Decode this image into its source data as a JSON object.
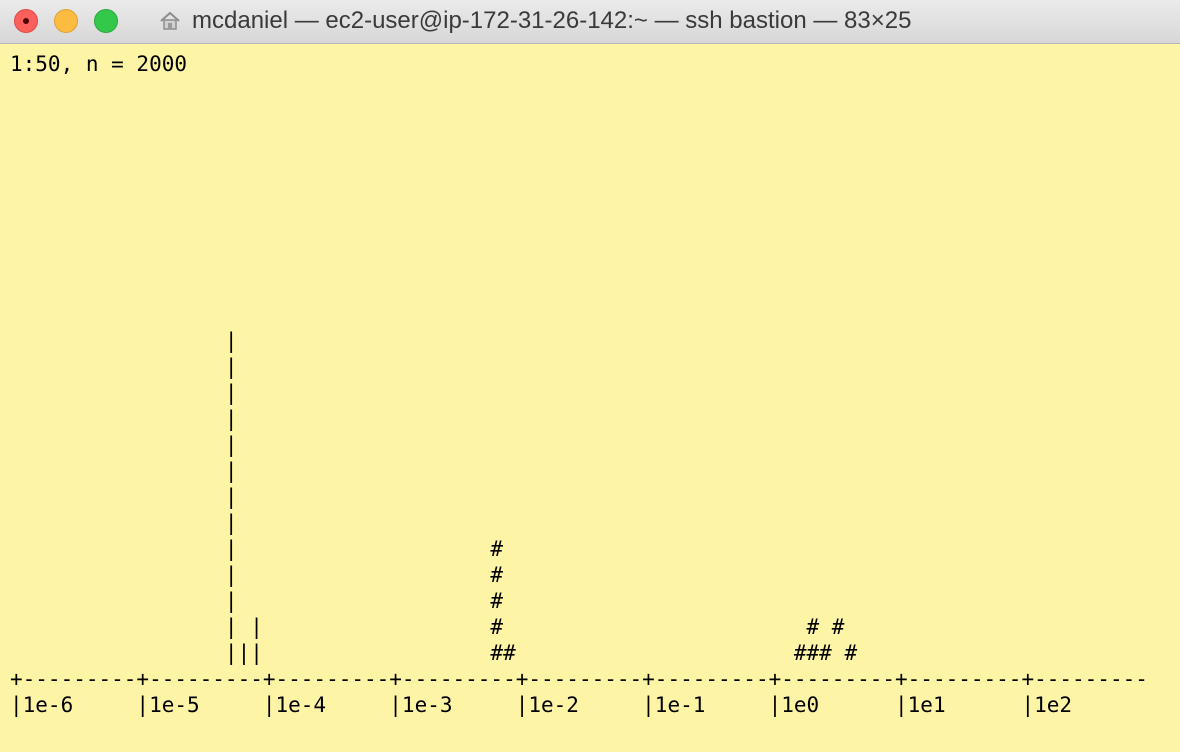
{
  "window": {
    "title": "mcdaniel — ec2-user@ip-172-31-26-142:~ — ssh bastion — 83×25",
    "title_icon": "home-icon",
    "controls": [
      "close-button",
      "minimize-button",
      "zoom-button"
    ],
    "colors": {
      "background": "#fdf4a6",
      "close": "#fc605c",
      "minimize": "#fdbc40",
      "zoom": "#34c84a"
    }
  },
  "terminal": {
    "header_line": "1:50, n = 2000",
    "histogram_lines": [
      "                 |",
      "                 |",
      "                 |",
      "                 |",
      "                 |",
      "                 |",
      "                 |",
      "                 |",
      "                 |                    #",
      "                 |                    #",
      "                 |                    #",
      "                 | |                  #                        # #",
      "                 |||                  ##                      ### #",
      "+---------+---------+---------+---------+---------+---------+---------+---------+---------",
      "|1e-6     |1e-5     |1e-4     |1e-3     |1e-2     |1e-1     |1e0      |1e1      |1e2"
    ]
  }
}
